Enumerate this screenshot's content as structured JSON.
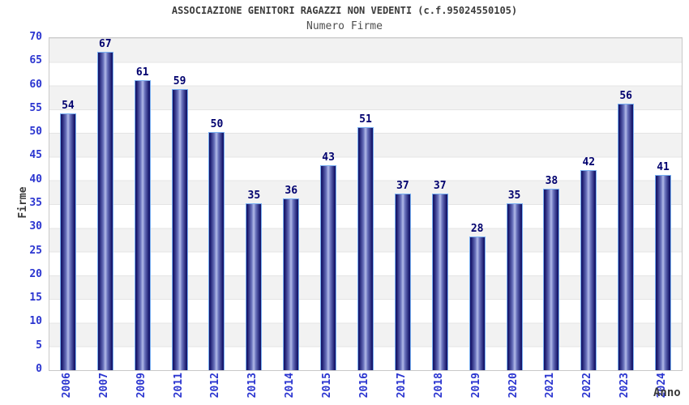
{
  "chart_data": {
    "type": "bar",
    "title": "ASSOCIAZIONE GENITORI RAGAZZI NON VEDENTI (c.f.95024550105)",
    "subtitle": "Numero Firme",
    "xlabel": "Anno",
    "ylabel": "Firme",
    "categories": [
      "2006",
      "2007",
      "2009",
      "2011",
      "2012",
      "2013",
      "2014",
      "2015",
      "2016",
      "2017",
      "2018",
      "2019",
      "2020",
      "2021",
      "2022",
      "2023",
      "2024"
    ],
    "values": [
      54,
      67,
      61,
      59,
      50,
      35,
      36,
      43,
      51,
      37,
      37,
      28,
      35,
      38,
      42,
      56,
      41
    ],
    "ylim": [
      0,
      70
    ],
    "ytick_step": 5,
    "grid": "horizontal-bands-alternating",
    "legend": "none",
    "colors": {
      "bar_dark": "#17176b",
      "bar_mid": "#6a73bd",
      "bar_light": "#b2bae8",
      "bar_outline": "#79b0f2",
      "axis_tick_label": "#2b35d0",
      "value_label": "#00006e",
      "title_text": "#3b3b3b",
      "subtitle_text": "#4f4f4f",
      "band_gray": "#f2f2f2",
      "band_white": "#ffffff",
      "plot_border": "#c9c9c9"
    }
  }
}
